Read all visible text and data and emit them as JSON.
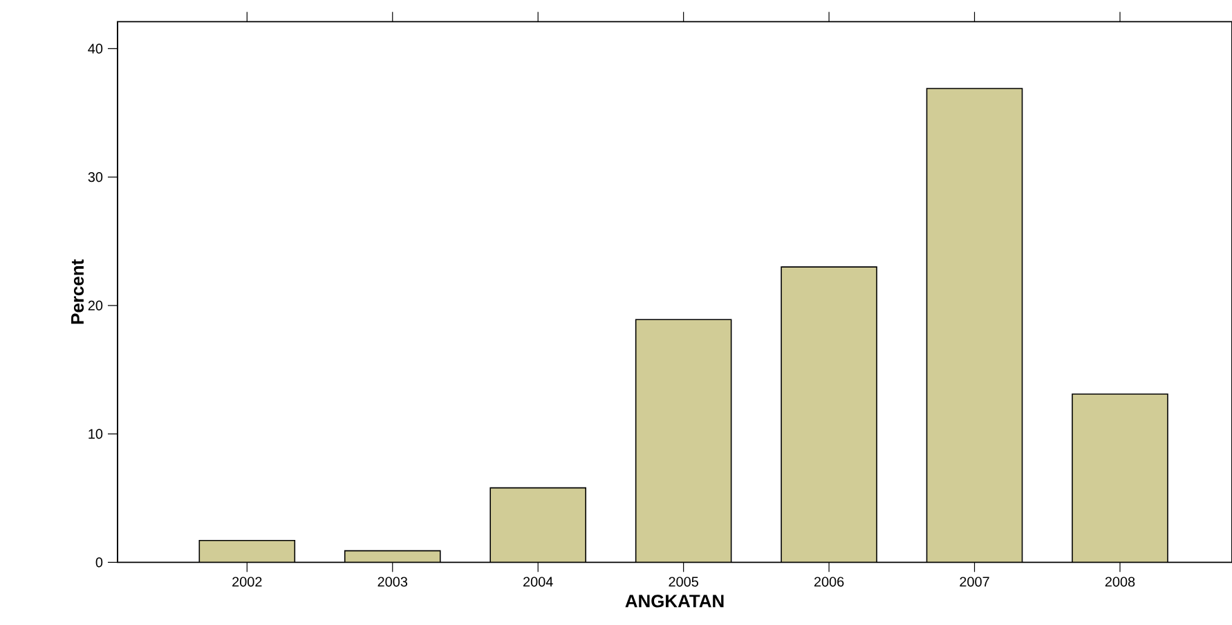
{
  "chart_data": {
    "type": "bar",
    "xlabel": "ANGKATAN",
    "ylabel": "Percent",
    "categories": [
      "2002",
      "2003",
      "2004",
      "2005",
      "2006",
      "2007",
      "2008"
    ],
    "values": [
      1.7,
      0.9,
      5.8,
      18.9,
      23.0,
      36.9,
      13.1
    ],
    "color": "#d1cc96",
    "ylim": [
      0,
      42.1
    ],
    "yticks": [
      0,
      10,
      20,
      30,
      40
    ],
    "grid": false
  }
}
